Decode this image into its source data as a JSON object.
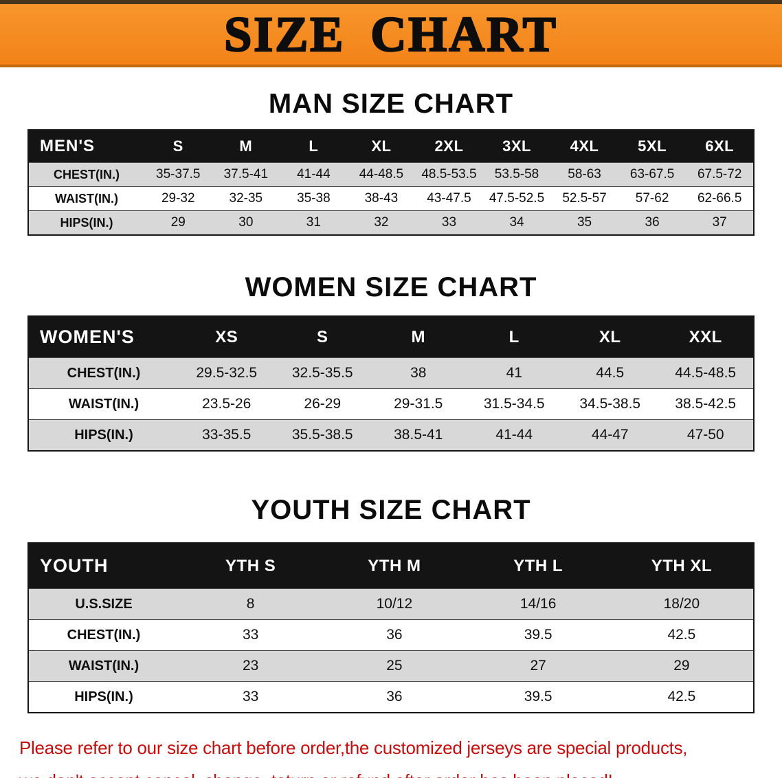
{
  "banner": {
    "title": "SIZE CHART"
  },
  "men": {
    "heading": "MAN SIZE CHART",
    "table": {
      "header": [
        "MEN'S",
        "S",
        "M",
        "L",
        "XL",
        "2XL",
        "3XL",
        "4XL",
        "5XL",
        "6XL"
      ],
      "rows": [
        {
          "label": "CHEST(IN.)",
          "values": [
            "35-37.5",
            "37.5-41",
            "41-44",
            "44-48.5",
            "48.5-53.5",
            "53.5-58",
            "58-63",
            "63-67.5",
            "67.5-72"
          ]
        },
        {
          "label": "WAIST(IN.)",
          "values": [
            "29-32",
            "32-35",
            "35-38",
            "38-43",
            "43-47.5",
            "47.5-52.5",
            "52.5-57",
            "57-62",
            "62-66.5"
          ]
        },
        {
          "label": "HIPS(IN.)",
          "values": [
            "29",
            "30",
            "31",
            "32",
            "33",
            "34",
            "35",
            "36",
            "37"
          ]
        }
      ]
    }
  },
  "women": {
    "heading": "WOMEN SIZE CHART",
    "table": {
      "header": [
        "WOMEN'S",
        "XS",
        "S",
        "M",
        "L",
        "XL",
        "XXL"
      ],
      "rows": [
        {
          "label": "CHEST(IN.)",
          "values": [
            "29.5-32.5",
            "32.5-35.5",
            "38",
            "41",
            "44.5",
            "44.5-48.5"
          ]
        },
        {
          "label": "WAIST(IN.)",
          "values": [
            "23.5-26",
            "26-29",
            "29-31.5",
            "31.5-34.5",
            "34.5-38.5",
            "38.5-42.5"
          ]
        },
        {
          "label": "HIPS(IN.)",
          "values": [
            "33-35.5",
            "35.5-38.5",
            "38.5-41",
            "41-44",
            "44-47",
            "47-50"
          ]
        }
      ]
    }
  },
  "youth": {
    "heading": "YOUTH SIZE CHART",
    "table": {
      "header": [
        "YOUTH",
        "YTH S",
        "YTH M",
        "YTH L",
        "YTH XL"
      ],
      "rows": [
        {
          "label": "U.S.SIZE",
          "values": [
            "8",
            "10/12",
            "14/16",
            "18/20"
          ]
        },
        {
          "label": "CHEST(IN.)",
          "values": [
            "33",
            "36",
            "39.5",
            "42.5"
          ]
        },
        {
          "label": "WAIST(IN.)",
          "values": [
            "23",
            "25",
            "27",
            "29"
          ]
        },
        {
          "label": "HIPS(IN.)",
          "values": [
            "33",
            "36",
            "39.5",
            "42.5"
          ]
        }
      ]
    }
  },
  "disclaimer": {
    "line1": "Please refer to our size chart before order,the customized jerseys are special products,",
    "line2": "we don't accept cancel, change, teturn or refund after order has been placed!"
  },
  "colors": {
    "banner_orange": "#f28218",
    "table_header_black": "#141414",
    "stripe_gray": "#d8d8d8",
    "disclaimer_red": "#c40f0f"
  }
}
